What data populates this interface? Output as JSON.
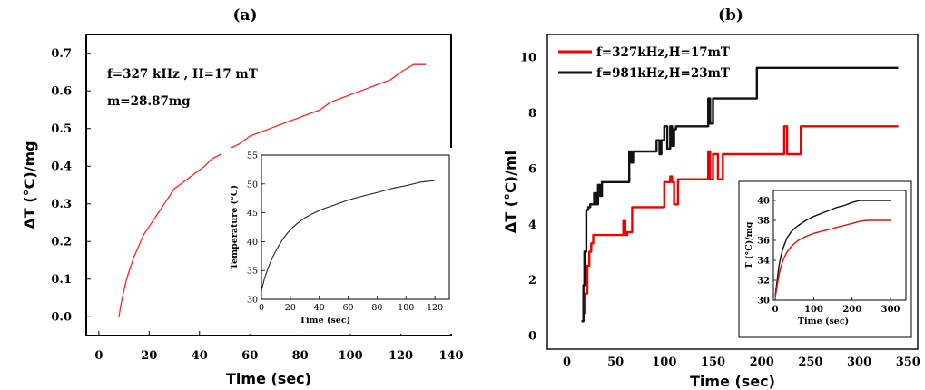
{
  "chart_data": [
    {
      "panel_label": "(a)",
      "type": "line",
      "xlabel": "Time (sec)",
      "ylabel": "ΔT (°C)/mg",
      "xlim": [
        -5,
        140
      ],
      "ylim": [
        -0.05,
        0.75
      ],
      "xticks": [
        "0",
        "20",
        "40",
        "60",
        "80",
        "100",
        "120",
        "140"
      ],
      "yticks": [
        "0.0",
        "0.1",
        "0.2",
        "0.3",
        "0.4",
        "0.5",
        "0.6",
        "0.7"
      ],
      "annotations": [
        "f=327 kHz , H=17 mT",
        "m=28.87mg"
      ],
      "series": [
        {
          "color": "#ff2222",
          "x": [
            8,
            9,
            10,
            11,
            12,
            14,
            16,
            18,
            20,
            22,
            24,
            26,
            28,
            30,
            32,
            34,
            36,
            38,
            40,
            42,
            45,
            48,
            50,
            53,
            56,
            60,
            64,
            68,
            72,
            76,
            80,
            84,
            88,
            92,
            96,
            100,
            104,
            108,
            112,
            116,
            120,
            125,
            130
          ],
          "y": [
            0.0,
            0.04,
            0.07,
            0.1,
            0.12,
            0.16,
            0.19,
            0.22,
            0.24,
            0.26,
            0.28,
            0.3,
            0.32,
            0.34,
            0.35,
            0.36,
            0.37,
            0.38,
            0.39,
            0.4,
            0.42,
            0.43,
            0.44,
            0.45,
            0.46,
            0.48,
            0.49,
            0.5,
            0.51,
            0.52,
            0.53,
            0.54,
            0.55,
            0.57,
            0.58,
            0.59,
            0.6,
            0.61,
            0.62,
            0.63,
            0.65,
            0.67,
            0.67
          ]
        }
      ],
      "inset": {
        "type": "line",
        "xlabel": "Time (sec)",
        "ylabel": "Temperature (°C)",
        "xlim": [
          0,
          130
        ],
        "ylim": [
          30,
          55
        ],
        "xticks": [
          "0",
          "20",
          "40",
          "60",
          "80",
          "100",
          "120"
        ],
        "yticks": [
          "30",
          "35",
          "40",
          "45",
          "50",
          "55"
        ],
        "series": [
          {
            "color": "#333333",
            "x": [
              0,
              2,
              4,
              6,
              8,
              10,
              12,
              15,
              18,
              21,
              25,
              30,
              35,
              40,
              45,
              50,
              60,
              70,
              80,
              90,
              100,
              110,
              120
            ],
            "y": [
              31.5,
              33.5,
              35.0,
              36.3,
              37.4,
              38.4,
              39.3,
              40.5,
              41.5,
              42.3,
              43.2,
              44.1,
              44.8,
              45.4,
              45.9,
              46.3,
              47.2,
              47.9,
              48.5,
              49.2,
              49.7,
              50.3,
              50.6
            ]
          }
        ]
      }
    },
    {
      "panel_label": "(b)",
      "type": "line",
      "xlabel": "Time (sec)",
      "ylabel": "ΔT (°C)/ml",
      "xlim": [
        -20,
        360
      ],
      "ylim": [
        -0.5,
        10.8
      ],
      "xticks": [
        "0",
        "50",
        "100",
        "150",
        "200",
        "250",
        "300",
        "350"
      ],
      "yticks": [
        "0",
        "2",
        "4",
        "6",
        "8",
        "10"
      ],
      "legend_position": "top-left",
      "series": [
        {
          "name": "f=327kHz,H=17mT",
          "color": "#ee0000",
          "x": [
            15,
            17,
            17,
            19,
            19,
            21,
            21,
            23,
            23,
            25,
            25,
            27,
            27,
            58,
            58,
            60,
            60,
            62,
            62,
            67,
            67,
            100,
            100,
            106,
            106,
            108,
            108,
            110,
            110,
            114,
            114,
            116,
            116,
            145,
            145,
            147,
            147,
            150,
            150,
            155,
            155,
            160,
            160,
            223,
            223,
            226,
            226,
            230,
            230,
            240,
            240,
            340
          ],
          "y": [
            0.5,
            0.5,
            0.8,
            0.8,
            1.5,
            1.5,
            2.5,
            2.5,
            3.0,
            3.0,
            3.3,
            3.3,
            3.6,
            3.6,
            4.1,
            4.1,
            3.6,
            3.6,
            3.7,
            3.7,
            4.6,
            4.6,
            5.5,
            5.5,
            5.7,
            5.7,
            5.5,
            5.5,
            4.7,
            4.7,
            5.6,
            5.6,
            5.6,
            5.6,
            6.6,
            6.6,
            5.6,
            5.6,
            6.5,
            6.5,
            5.6,
            5.6,
            6.5,
            6.5,
            7.5,
            7.5,
            6.5,
            6.5,
            6.5,
            6.5,
            7.5,
            7.5
          ]
        },
        {
          "name": "f=981kHz,H=23mT",
          "color": "#111111",
          "x": [
            15,
            17,
            17,
            18,
            18,
            20,
            20,
            22,
            22,
            24,
            24,
            28,
            28,
            30,
            30,
            32,
            32,
            34,
            34,
            36,
            36,
            38,
            38,
            64,
            64,
            66,
            66,
            68,
            68,
            92,
            92,
            95,
            95,
            97,
            97,
            100,
            100,
            103,
            103,
            106,
            106,
            108,
            108,
            110,
            110,
            112,
            112,
            145,
            145,
            147,
            147,
            150,
            150,
            195,
            195,
            340
          ],
          "y": [
            0.5,
            0.5,
            1.8,
            1.8,
            3.0,
            3.0,
            4.5,
            4.5,
            4.6,
            4.6,
            4.7,
            4.7,
            5.1,
            5.1,
            4.7,
            4.7,
            5.4,
            5.4,
            5.0,
            5.0,
            5.5,
            5.5,
            5.5,
            5.5,
            6.6,
            6.6,
            6.2,
            6.2,
            6.6,
            6.6,
            7.0,
            7.0,
            6.5,
            6.5,
            7.0,
            7.0,
            7.5,
            7.5,
            6.7,
            6.7,
            7.5,
            7.5,
            6.8,
            6.8,
            7.4,
            7.4,
            7.5,
            7.5,
            8.5,
            8.5,
            7.6,
            7.6,
            8.5,
            8.5,
            9.6,
            9.6
          ]
        }
      ],
      "inset": {
        "type": "line",
        "xlabel": "Time (sec)",
        "ylabel": "T (°C)/mg",
        "xlim": [
          -5,
          340
        ],
        "ylim": [
          30,
          41
        ],
        "xticks": [
          "0",
          "100",
          "200",
          "300"
        ],
        "yticks": [
          "30",
          "32",
          "34",
          "36",
          "38",
          "40"
        ],
        "series": [
          {
            "color": "#111111",
            "x": [
              0,
              5,
              10,
              15,
              20,
              30,
              40,
              50,
              60,
              80,
              100,
              120,
              140,
              160,
              180,
              200,
              220,
              240,
              260,
              300
            ],
            "y": [
              30.5,
              32.0,
              33.5,
              34.5,
              35.2,
              36.2,
              36.8,
              37.2,
              37.5,
              38.0,
              38.4,
              38.7,
              39.0,
              39.3,
              39.5,
              39.8,
              40.0,
              40.0,
              40.0,
              40.0
            ]
          },
          {
            "color": "#dd1111",
            "x": [
              0,
              5,
              10,
              15,
              20,
              30,
              40,
              50,
              60,
              80,
              100,
              120,
              140,
              160,
              180,
              200,
              220,
              240,
              260,
              300
            ],
            "y": [
              30.3,
              31.5,
              32.6,
              33.4,
              34.0,
              34.8,
              35.3,
              35.7,
              36.0,
              36.4,
              36.7,
              36.9,
              37.1,
              37.3,
              37.5,
              37.7,
              37.9,
              38.0,
              38.0,
              38.0
            ]
          }
        ]
      }
    }
  ]
}
